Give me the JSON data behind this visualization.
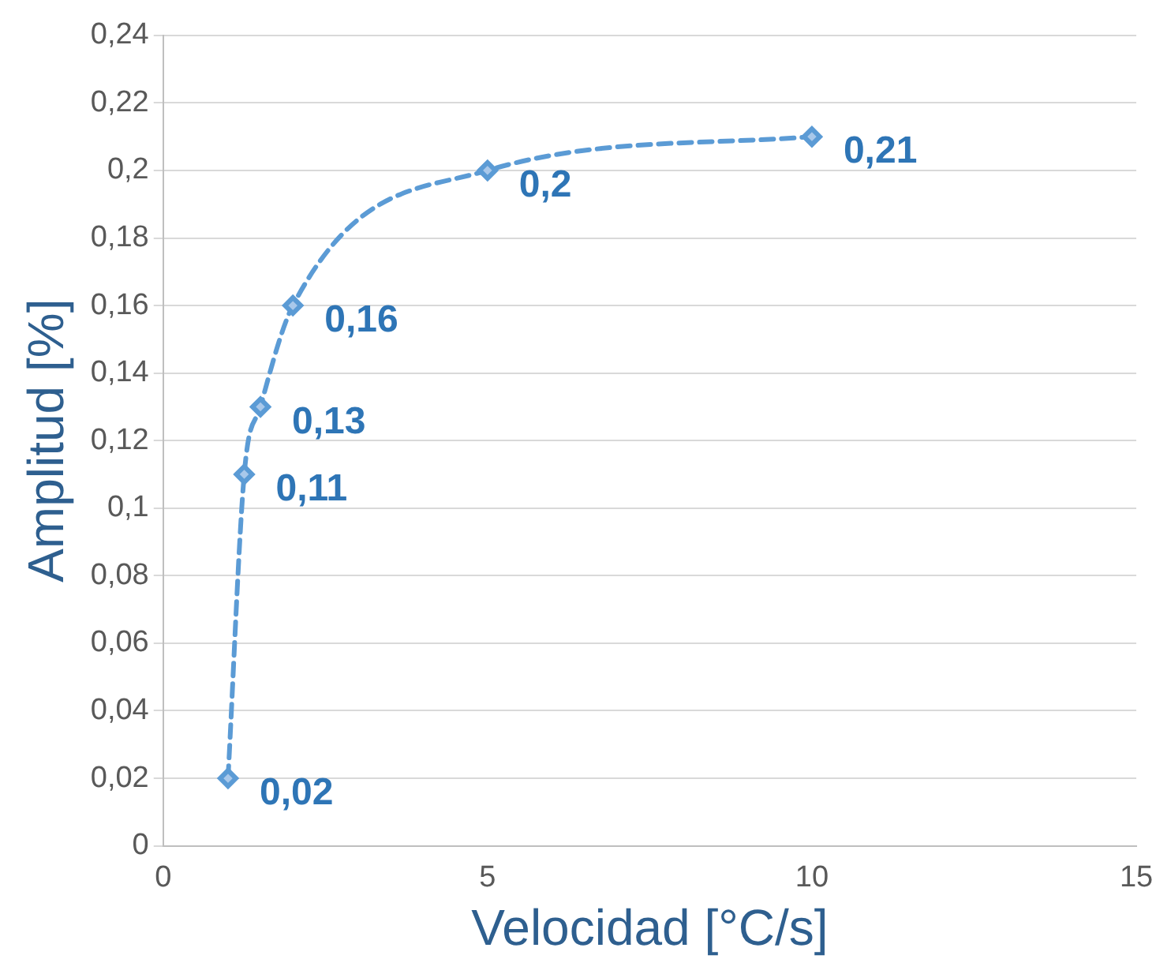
{
  "chart_data": {
    "type": "line",
    "xlabel": "Velocidad [°C/s]",
    "ylabel": "Amplitud [%]",
    "series": [
      {
        "color": "#5b9bd5",
        "x": [
          1,
          1.25,
          1.5,
          2,
          5,
          10
        ],
        "values": [
          0.02,
          0.11,
          0.13,
          0.16,
          0.2,
          0.21
        ],
        "value_labels": [
          "0,02",
          "0,11",
          "0,13",
          "0,16",
          "0,2",
          "0,21"
        ]
      }
    ],
    "xlim": [
      0,
      15
    ],
    "xticks": [
      0,
      5,
      10,
      15
    ],
    "ylim": [
      0,
      0.24
    ],
    "yticks": [
      0,
      {
        "value": 0.02,
        "label": "0,02"
      },
      {
        "value": 0.04,
        "label": "0,04"
      },
      {
        "value": 0.06,
        "label": "0,06"
      },
      {
        "value": 0.08,
        "label": "0,08"
      },
      {
        "value": 0.1,
        "label": "0,1"
      },
      {
        "value": 0.12,
        "label": "0,12"
      },
      {
        "value": 0.14,
        "label": "0,14"
      },
      {
        "value": 0.16,
        "label": "0,16"
      },
      {
        "value": 0.18,
        "label": "0,18"
      },
      {
        "value": 0.2,
        "label": "0,2"
      },
      {
        "value": 0.22,
        "label": "0,22"
      },
      {
        "value": 0.24,
        "label": "0,24"
      }
    ],
    "grid": "y",
    "marker": "diamond",
    "line_style": "dashed",
    "legend": false
  }
}
